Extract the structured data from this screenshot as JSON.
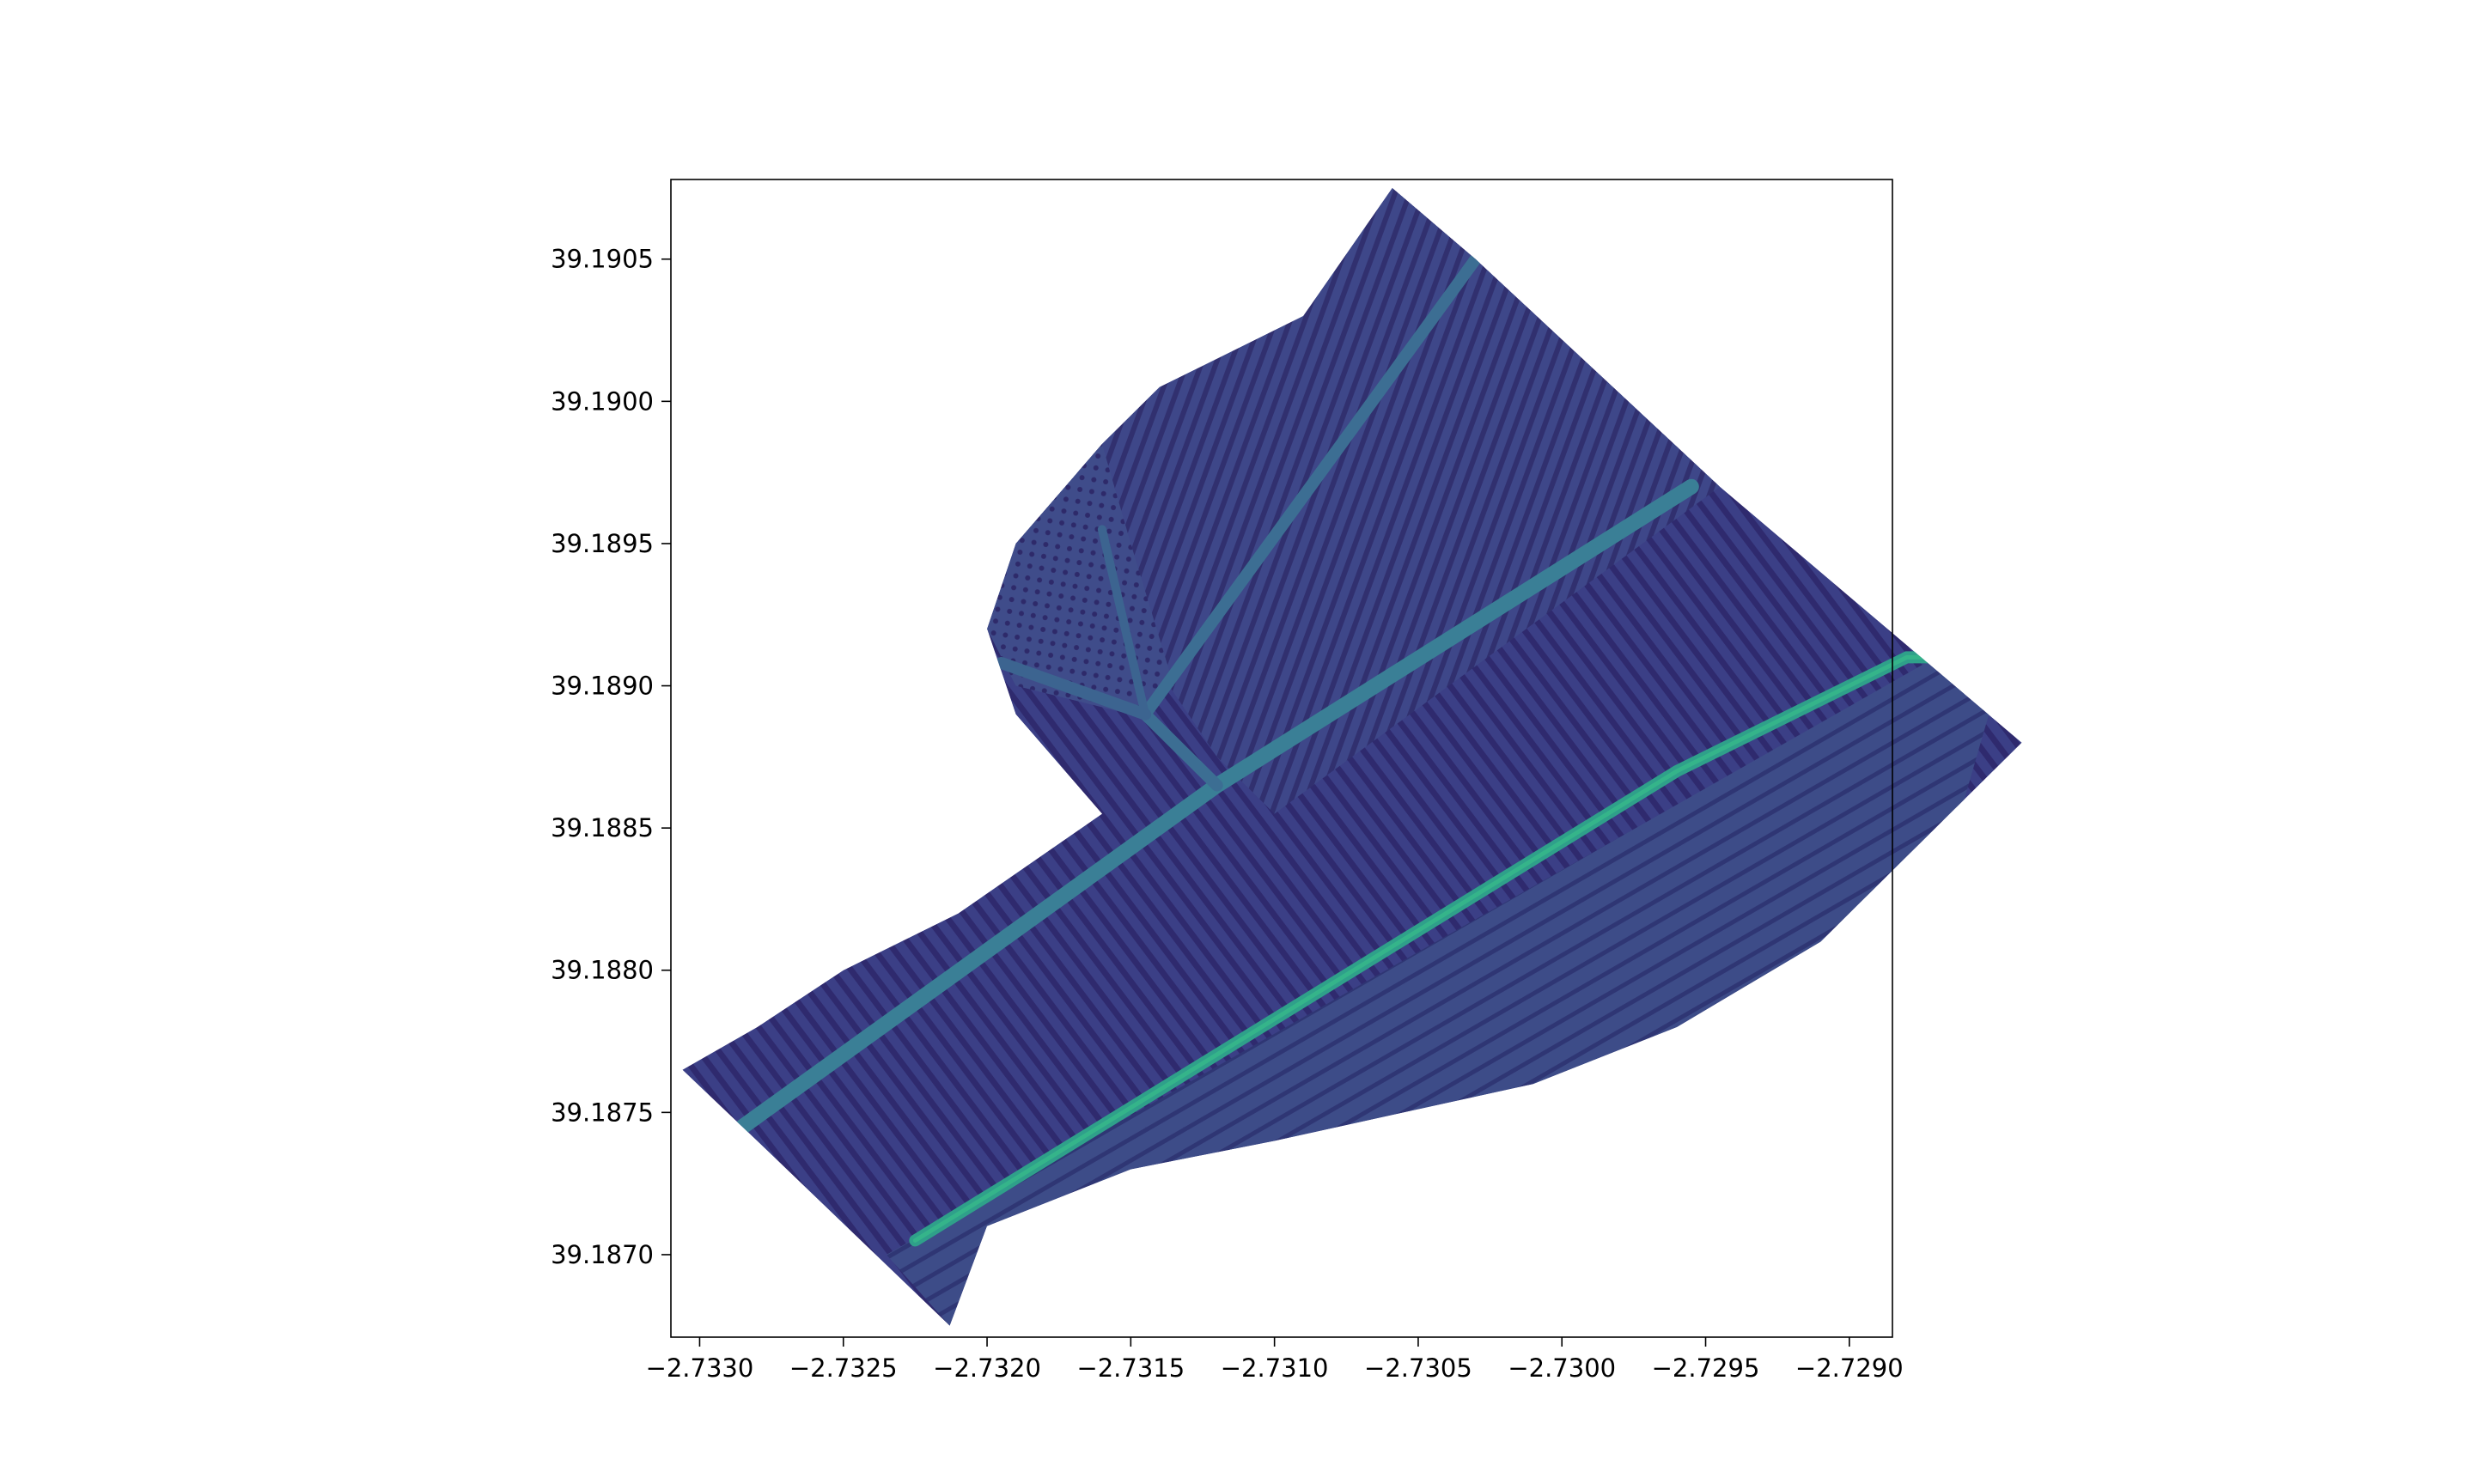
{
  "chart_data": {
    "type": "heatmap",
    "title": "",
    "xlabel": "",
    "ylabel": "",
    "colormap": "viridis",
    "xlim": [
      -2.7331,
      -2.72885
    ],
    "ylim": [
      39.18671,
      39.19078
    ],
    "x_ticks": [
      {
        "value": -2.733,
        "label": "−2.7330"
      },
      {
        "value": -2.7325,
        "label": "−2.7325"
      },
      {
        "value": -2.732,
        "label": "−2.7320"
      },
      {
        "value": -2.7315,
        "label": "−2.7315"
      },
      {
        "value": -2.731,
        "label": "−2.7310"
      },
      {
        "value": -2.7305,
        "label": "−2.7305"
      },
      {
        "value": -2.73,
        "label": "−2.7300"
      },
      {
        "value": -2.7295,
        "label": "−2.7295"
      },
      {
        "value": -2.729,
        "label": "−2.7290"
      }
    ],
    "y_ticks": [
      {
        "value": 39.187,
        "label": "39.1870"
      },
      {
        "value": 39.1875,
        "label": "39.1875"
      },
      {
        "value": 39.188,
        "label": "39.1880"
      },
      {
        "value": 39.1885,
        "label": "39.1885"
      },
      {
        "value": 39.189,
        "label": "39.1890"
      },
      {
        "value": 39.1895,
        "label": "39.1895"
      },
      {
        "value": 39.19,
        "label": "39.1900"
      },
      {
        "value": 39.1905,
        "label": "39.1905"
      }
    ],
    "raster_outline": [
      [
        -2.73059,
        39.19075
      ],
      [
        -2.7303,
        39.1905
      ],
      [
        -2.72945,
        39.1897
      ],
      [
        -2.7284,
        39.1888
      ],
      [
        -2.7286,
        39.1886
      ],
      [
        -2.7291,
        39.1881
      ],
      [
        -2.7296,
        39.1878
      ],
      [
        -2.7301,
        39.1876
      ],
      [
        -2.731,
        39.1874
      ],
      [
        -2.7315,
        39.1873
      ],
      [
        -2.732,
        39.1871
      ],
      [
        -2.73213,
        39.18675
      ],
      [
        -2.7328,
        39.1874
      ],
      [
        -2.73306,
        39.18765
      ],
      [
        -2.7328,
        39.1878
      ],
      [
        -2.7325,
        39.188
      ],
      [
        -2.7321,
        39.1882
      ],
      [
        -2.7316,
        39.18855
      ],
      [
        -2.7319,
        39.1889
      ],
      [
        -2.732,
        39.1892
      ],
      [
        -2.7319,
        39.1895
      ],
      [
        -2.7316,
        39.18985
      ],
      [
        -2.7314,
        39.19005
      ],
      [
        -2.7309,
        39.1903
      ]
    ]
  }
}
